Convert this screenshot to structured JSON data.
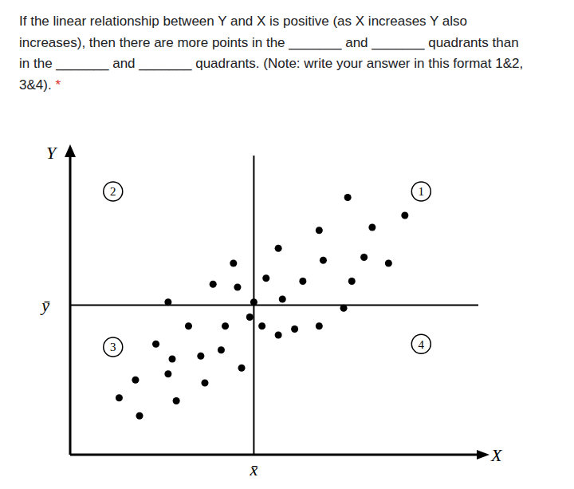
{
  "question": {
    "text": "If the linear relationship between Y and X is positive (as X increases Y also increases), then there are more points in the _______ and _______ quadrants than in the _______ and _______ quadrants. (Note: write your answer in this format 1&2, 3&4).",
    "required_mark": "*"
  },
  "chart_data": {
    "type": "scatter",
    "x_label": "X",
    "y_label": "Y",
    "xlim": [
      0,
      100
    ],
    "ylim": [
      0,
      100
    ],
    "tick_labels": false,
    "color": "#000000",
    "marker": "circle",
    "x_mean": {
      "value": 45,
      "label": "x̄"
    },
    "y_mean": {
      "value": 50,
      "label": "ȳ"
    },
    "annotations": [
      {
        "text": "1",
        "x": 86,
        "y": 88
      },
      {
        "text": "2",
        "x": 10.5,
        "y": 88
      },
      {
        "text": "3",
        "x": 10.5,
        "y": 36
      },
      {
        "text": "4",
        "x": 86,
        "y": 37
      }
    ],
    "x": [
      68,
      74,
      82,
      61,
      51,
      72,
      78,
      62,
      40,
      57,
      41,
      35,
      48,
      69,
      52,
      24,
      67,
      45,
      44,
      61,
      55,
      51,
      47,
      38,
      29,
      21,
      37,
      32,
      42,
      25,
      16,
      24,
      33,
      26,
      12,
      17
    ],
    "values": [
      86,
      76,
      80,
      75,
      69,
      66,
      64,
      65,
      64,
      58,
      56,
      57,
      59,
      58,
      52,
      51,
      49,
      51,
      46,
      43,
      42,
      40,
      43,
      43,
      43,
      37,
      35,
      33,
      29,
      32,
      25,
      27,
      24,
      18,
      19,
      13
    ]
  }
}
